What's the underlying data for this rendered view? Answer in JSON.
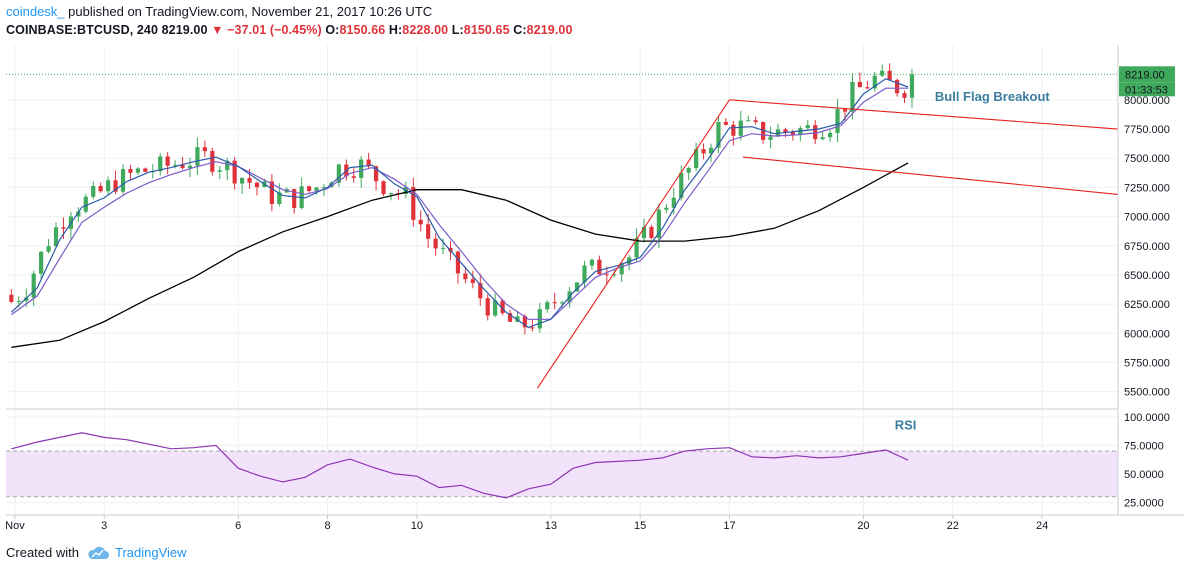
{
  "header": {
    "brand": "coindesk_",
    "published": "published on TradingView.com, November 21, 2017 10:26 UTC"
  },
  "symbol": {
    "name": "COINBASE:BTCUSD, 240",
    "last": "8219.00",
    "change_arrow": "▼",
    "change": "−37.01 (−0.45%)",
    "open_label": "O:",
    "open": "8150.66",
    "high_label": "H:",
    "high": "8228.00",
    "low_label": "L:",
    "low": "8150.65",
    "close_label": "C:",
    "close": "8219.00"
  },
  "price_badge": {
    "value": "8219.00",
    "countdown": "01:33:53"
  },
  "footer": {
    "created_with": "Created with",
    "brand": "TradingView"
  },
  "colors": {
    "up": "#3fa95c",
    "down": "#e0323a",
    "ma_fast": "#2b5aa8",
    "ma_mid": "#7b5ac9",
    "ma_slow": "#000000",
    "trendline": "#e8201c",
    "rsi_line": "#8e35b4",
    "rsi_band": "#f3e3fa",
    "accent": "#2196f3"
  },
  "chart_data": [
    {
      "type": "candlestick",
      "annotations": [
        "Bull Flag Breakout"
      ],
      "y_ticks": [
        "8000.000",
        "7750.000",
        "7500.000",
        "7250.000",
        "7000.000",
        "6750.000",
        "6500.000",
        "6250.000",
        "6000.000",
        "5750.000",
        "5500.000"
      ],
      "y_tick_values": [
        8000,
        7750,
        7500,
        7250,
        7000,
        6750,
        6500,
        6250,
        6000,
        5750,
        5500
      ],
      "x_ticks": [
        "Nov",
        "3",
        "6",
        "8",
        "10",
        "13",
        "15",
        "17",
        "20",
        "22",
        "24"
      ],
      "x_tick_days": [
        1,
        3,
        6,
        8,
        10,
        13,
        15,
        17,
        20,
        22,
        24
      ],
      "day_range": [
        0.8,
        25.7
      ],
      "ylim": [
        5360,
        8470
      ],
      "last_price": 8219,
      "ma_fast": [
        [
          0.92,
          6180
        ],
        [
          1.5,
          6390
        ],
        [
          2,
          6800
        ],
        [
          2.5,
          7080
        ],
        [
          3,
          7160
        ],
        [
          3.5,
          7300
        ],
        [
          4,
          7380
        ],
        [
          4.5,
          7420
        ],
        [
          5,
          7470
        ],
        [
          5.5,
          7510
        ],
        [
          6,
          7430
        ],
        [
          6.5,
          7300
        ],
        [
          7,
          7180
        ],
        [
          7.5,
          7160
        ],
        [
          8,
          7250
        ],
        [
          8.5,
          7420
        ],
        [
          9,
          7440
        ],
        [
          9.5,
          7280
        ],
        [
          10,
          7170
        ],
        [
          10.5,
          6820
        ],
        [
          11,
          6600
        ],
        [
          11.5,
          6380
        ],
        [
          12,
          6180
        ],
        [
          12.5,
          6050
        ],
        [
          13,
          6120
        ],
        [
          13.5,
          6350
        ],
        [
          14,
          6530
        ],
        [
          14.5,
          6580
        ],
        [
          15,
          6650
        ],
        [
          15.5,
          6900
        ],
        [
          16,
          7230
        ],
        [
          16.5,
          7480
        ],
        [
          17,
          7760
        ],
        [
          17.5,
          7770
        ],
        [
          18,
          7710
        ],
        [
          18.5,
          7730
        ],
        [
          19,
          7750
        ],
        [
          19.5,
          7800
        ],
        [
          20,
          8050
        ],
        [
          20.5,
          8180
        ],
        [
          21,
          8110
        ]
      ],
      "ma_mid": [
        [
          0.92,
          6160
        ],
        [
          1.5,
          6320
        ],
        [
          2,
          6640
        ],
        [
          2.5,
          6950
        ],
        [
          3,
          7080
        ],
        [
          3.5,
          7200
        ],
        [
          4,
          7290
        ],
        [
          4.5,
          7360
        ],
        [
          5,
          7420
        ],
        [
          5.5,
          7470
        ],
        [
          6,
          7430
        ],
        [
          6.5,
          7330
        ],
        [
          7,
          7230
        ],
        [
          7.5,
          7190
        ],
        [
          8,
          7240
        ],
        [
          8.5,
          7370
        ],
        [
          9,
          7420
        ],
        [
          9.5,
          7320
        ],
        [
          10,
          7190
        ],
        [
          10.5,
          6930
        ],
        [
          11,
          6700
        ],
        [
          11.5,
          6460
        ],
        [
          12,
          6250
        ],
        [
          12.5,
          6120
        ],
        [
          13,
          6120
        ],
        [
          13.5,
          6300
        ],
        [
          14,
          6480
        ],
        [
          14.5,
          6560
        ],
        [
          15,
          6620
        ],
        [
          15.5,
          6830
        ],
        [
          16,
          7120
        ],
        [
          16.5,
          7380
        ],
        [
          17,
          7650
        ],
        [
          17.5,
          7710
        ],
        [
          18,
          7690
        ],
        [
          18.5,
          7700
        ],
        [
          19,
          7720
        ],
        [
          19.5,
          7780
        ],
        [
          20,
          7980
        ],
        [
          20.5,
          8100
        ],
        [
          21,
          8100
        ]
      ],
      "ma_slow": [
        [
          0.92,
          5880
        ],
        [
          2,
          5940
        ],
        [
          3,
          6100
        ],
        [
          4,
          6300
        ],
        [
          5,
          6480
        ],
        [
          6,
          6700
        ],
        [
          7,
          6870
        ],
        [
          8,
          7000
        ],
        [
          9,
          7140
        ],
        [
          10,
          7230
        ],
        [
          11,
          7230
        ],
        [
          12,
          7140
        ],
        [
          13,
          6970
        ],
        [
          14,
          6850
        ],
        [
          15,
          6790
        ],
        [
          16,
          6790
        ],
        [
          17,
          6830
        ],
        [
          18,
          6900
        ],
        [
          19,
          7050
        ],
        [
          20,
          7250
        ],
        [
          21,
          7460
        ]
      ],
      "trendlines": [
        {
          "name": "pole",
          "points": [
            [
              12.7,
              5530
            ],
            [
              17,
              8000
            ]
          ]
        },
        {
          "name": "flag-top",
          "points": [
            [
              17,
              8000
            ],
            [
              25.7,
              7750
            ]
          ]
        },
        {
          "name": "flag-bottom",
          "points": [
            [
              17.3,
              7510
            ],
            [
              25.7,
              7190
            ]
          ]
        }
      ]
    },
    {
      "type": "line",
      "annotations": [
        "RSI"
      ],
      "y_ticks": [
        "100.0000",
        "75.0000",
        "50.0000",
        "25.0000"
      ],
      "y_tick_values": [
        100,
        75,
        50,
        25
      ],
      "ylim": [
        14,
        106
      ],
      "bands": [
        70,
        30
      ],
      "series": [
        {
          "values": [
            [
              0.92,
              72
            ],
            [
              1.5,
              78
            ],
            [
              2,
              82
            ],
            [
              2.5,
              86
            ],
            [
              3,
              82
            ],
            [
              3.5,
              80
            ],
            [
              4,
              76
            ],
            [
              4.5,
              72
            ],
            [
              5,
              73
            ],
            [
              5.5,
              75
            ],
            [
              6,
              55
            ],
            [
              6.5,
              48
            ],
            [
              7,
              43
            ],
            [
              7.5,
              47
            ],
            [
              8,
              58
            ],
            [
              8.5,
              63
            ],
            [
              9,
              56
            ],
            [
              9.5,
              50
            ],
            [
              10,
              48
            ],
            [
              10.5,
              38
            ],
            [
              11,
              40
            ],
            [
              11.5,
              33
            ],
            [
              12,
              29
            ],
            [
              12.5,
              37
            ],
            [
              13,
              41
            ],
            [
              13.5,
              55
            ],
            [
              14,
              60
            ],
            [
              14.5,
              61
            ],
            [
              15,
              62
            ],
            [
              15.5,
              64
            ],
            [
              16,
              70
            ],
            [
              16.5,
              72
            ],
            [
              17,
              73
            ],
            [
              17.5,
              65
            ],
            [
              18,
              64
            ],
            [
              18.5,
              66
            ],
            [
              19,
              64
            ],
            [
              19.5,
              65
            ],
            [
              20,
              68
            ],
            [
              20.5,
              71
            ],
            [
              21,
              62
            ]
          ]
        }
      ]
    }
  ]
}
